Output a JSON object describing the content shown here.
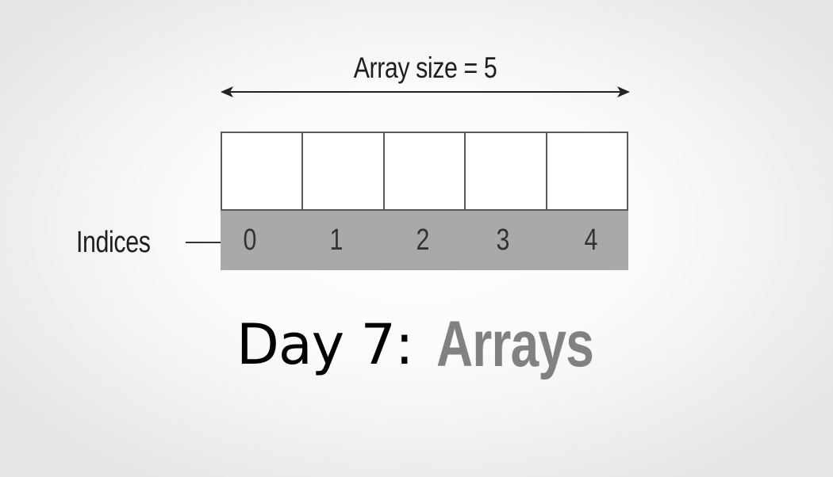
{
  "diagram": {
    "size_label": "Array size = 5",
    "indices_label": "Indices",
    "cell_count": 5,
    "indices": [
      "0",
      "1",
      "2",
      "3",
      "4"
    ]
  },
  "title": {
    "prefix": "Day 7:",
    "topic": "Arrays"
  },
  "colors": {
    "index_bar": "#a9a9a9",
    "cell_border": "#5a5a5a",
    "topic_text": "#818181",
    "label_text": "#1e1e1e"
  }
}
